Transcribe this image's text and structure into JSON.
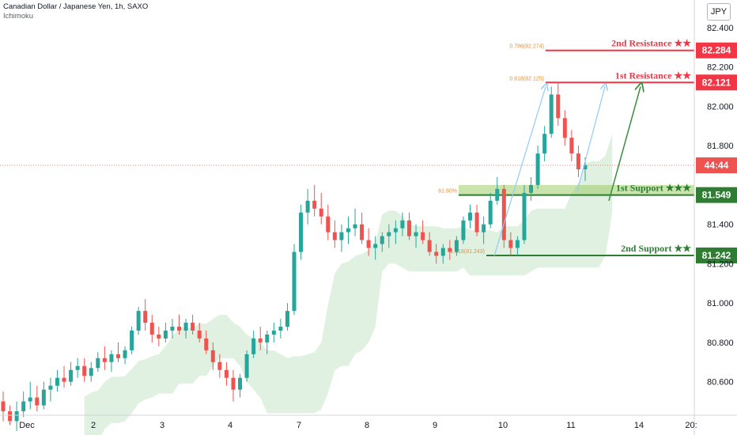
{
  "header": {
    "title": "Canadian Dollar / Japanese Yen, 1h, SAXO",
    "indicator": "Ichimoku"
  },
  "currency_button": "JPY",
  "colors": {
    "up": "#26a69a",
    "down": "#ef5350",
    "resistance": "#f23645",
    "support": "#2e7d32",
    "support_zone": "#8bc34a",
    "cloud_bull": "#c8e6c9",
    "cloud_bear": "#ffcdd2",
    "arrow_blue": "#90caf9",
    "arrow_green": "#388e3c",
    "fib": "#e69138"
  },
  "chart_data": {
    "type": "candlestick",
    "title": "Canadian Dollar / Japanese Yen, 1h, SAXO",
    "x_ticks": [
      "Dec",
      "2",
      "3",
      "4",
      "7",
      "8",
      "9",
      "10",
      "11",
      "14",
      "20:"
    ],
    "y_ticks": [
      "82.400",
      "82.200",
      "82.000",
      "81.800",
      "81.400",
      "81.200",
      "81.000",
      "80.800",
      "80.600"
    ],
    "ylim": [
      80.45,
      82.5
    ],
    "grid": false,
    "levels": [
      {
        "label": "2nd Resistance ★★",
        "value": 82.284,
        "value_label": "82.284",
        "kind": "resistance",
        "fib": "0.786(82.274)"
      },
      {
        "label": "1st Resistance ★★",
        "value": 82.121,
        "value_label": "82.121",
        "kind": "resistance",
        "fib": "0.618(82.125)"
      },
      {
        "label": "1st Support ★★★",
        "value": 81.549,
        "value_label": "81.549",
        "kind": "support",
        "fib": "61.80%"
      },
      {
        "label": "2nd Support ★★",
        "value": 81.242,
        "value_label": "81.242",
        "kind": "support",
        "fib": "1.618(81.243)"
      }
    ],
    "countdown_label": "44:44",
    "current_price": 81.7,
    "candles": [
      [
        80.5,
        80.55,
        80.4,
        80.45
      ],
      [
        80.45,
        80.48,
        80.38,
        80.4
      ],
      [
        80.4,
        80.5,
        80.35,
        80.45
      ],
      [
        80.45,
        80.55,
        80.42,
        80.5
      ],
      [
        80.5,
        80.6,
        80.46,
        80.52
      ],
      [
        80.52,
        80.58,
        80.45,
        80.48
      ],
      [
        80.48,
        80.6,
        80.46,
        80.56
      ],
      [
        80.56,
        80.62,
        80.5,
        80.58
      ],
      [
        80.58,
        80.66,
        80.55,
        80.62
      ],
      [
        80.62,
        80.68,
        80.57,
        80.6
      ],
      [
        80.6,
        80.7,
        80.58,
        80.66
      ],
      [
        80.66,
        80.72,
        80.62,
        80.68
      ],
      [
        80.68,
        80.72,
        80.6,
        80.63
      ],
      [
        80.63,
        80.7,
        80.6,
        80.67
      ],
      [
        80.67,
        80.75,
        80.65,
        80.72
      ],
      [
        80.72,
        80.78,
        80.66,
        80.7
      ],
      [
        80.7,
        80.76,
        80.65,
        80.74
      ],
      [
        80.74,
        80.8,
        80.7,
        80.72
      ],
      [
        80.72,
        80.78,
        80.69,
        80.76
      ],
      [
        80.76,
        80.88,
        80.74,
        80.86
      ],
      [
        80.86,
        80.98,
        80.84,
        80.96
      ],
      [
        80.96,
        81.02,
        80.86,
        80.9
      ],
      [
        80.9,
        80.94,
        80.8,
        80.84
      ],
      [
        80.84,
        80.88,
        80.78,
        80.82
      ],
      [
        80.82,
        80.9,
        80.8,
        80.86
      ],
      [
        80.86,
        80.92,
        80.82,
        80.88
      ],
      [
        80.88,
        80.94,
        80.84,
        80.86
      ],
      [
        80.86,
        80.92,
        80.82,
        80.9
      ],
      [
        80.9,
        80.94,
        80.84,
        80.86
      ],
      [
        80.86,
        80.9,
        80.8,
        80.82
      ],
      [
        80.82,
        80.86,
        80.74,
        80.76
      ],
      [
        80.76,
        80.8,
        80.66,
        80.7
      ],
      [
        80.7,
        80.74,
        80.62,
        80.66
      ],
      [
        80.66,
        80.7,
        80.58,
        80.62
      ],
      [
        80.62,
        80.66,
        80.5,
        80.56
      ],
      [
        80.56,
        80.64,
        80.52,
        80.62
      ],
      [
        80.62,
        80.76,
        80.6,
        80.74
      ],
      [
        80.74,
        80.86,
        80.72,
        80.82
      ],
      [
        80.82,
        80.88,
        80.76,
        80.8
      ],
      [
        80.8,
        80.86,
        80.74,
        80.84
      ],
      [
        80.84,
        80.9,
        80.8,
        80.86
      ],
      [
        80.86,
        80.92,
        80.82,
        80.88
      ],
      [
        80.88,
        81.0,
        80.86,
        80.96
      ],
      [
        80.96,
        81.3,
        80.94,
        81.26
      ],
      [
        81.26,
        81.5,
        81.22,
        81.46
      ],
      [
        81.46,
        81.58,
        81.4,
        81.52
      ],
      [
        81.52,
        81.6,
        81.44,
        81.48
      ],
      [
        81.48,
        81.56,
        81.4,
        81.44
      ],
      [
        81.44,
        81.5,
        81.32,
        81.36
      ],
      [
        81.36,
        81.42,
        81.28,
        81.32
      ],
      [
        81.32,
        81.4,
        81.26,
        81.36
      ],
      [
        81.36,
        81.44,
        81.3,
        81.38
      ],
      [
        81.38,
        81.48,
        81.34,
        81.4
      ],
      [
        81.4,
        81.46,
        81.3,
        81.32
      ],
      [
        81.32,
        81.38,
        81.24,
        81.28
      ],
      [
        81.28,
        81.34,
        81.22,
        81.3
      ],
      [
        81.3,
        81.36,
        81.26,
        81.34
      ],
      [
        81.34,
        81.4,
        81.28,
        81.36
      ],
      [
        81.36,
        81.42,
        81.3,
        81.38
      ],
      [
        81.38,
        81.46,
        81.34,
        81.42
      ],
      [
        81.42,
        81.46,
        81.32,
        81.34
      ],
      [
        81.34,
        81.4,
        81.28,
        81.36
      ],
      [
        81.36,
        81.42,
        81.3,
        81.32
      ],
      [
        81.32,
        81.36,
        81.24,
        81.26
      ],
      [
        81.26,
        81.3,
        81.2,
        81.24
      ],
      [
        81.24,
        81.3,
        81.2,
        81.28
      ],
      [
        81.28,
        81.32,
        81.22,
        81.26
      ],
      [
        81.26,
        81.34,
        81.24,
        81.32
      ],
      [
        81.32,
        81.44,
        81.3,
        81.42
      ],
      [
        81.42,
        81.5,
        81.38,
        81.46
      ],
      [
        81.46,
        81.5,
        81.34,
        81.36
      ],
      [
        81.36,
        81.44,
        81.3,
        81.4
      ],
      [
        81.4,
        81.56,
        81.38,
        81.52
      ],
      [
        81.52,
        81.64,
        81.5,
        81.58
      ],
      [
        81.58,
        81.6,
        81.28,
        81.32
      ],
      [
        81.32,
        81.36,
        81.24,
        81.28
      ],
      [
        81.28,
        81.34,
        81.24,
        81.32
      ],
      [
        81.32,
        81.6,
        81.3,
        81.56
      ],
      [
        81.56,
        81.64,
        81.52,
        81.6
      ],
      [
        81.6,
        81.8,
        81.58,
        81.76
      ],
      [
        81.76,
        81.9,
        81.72,
        81.86
      ],
      [
        81.86,
        82.1,
        81.84,
        82.06
      ],
      [
        82.06,
        82.12,
        81.9,
        81.94
      ],
      [
        81.94,
        81.98,
        81.8,
        81.84
      ],
      [
        81.84,
        81.88,
        81.72,
        81.76
      ],
      [
        81.76,
        81.8,
        81.64,
        81.68
      ],
      [
        81.68,
        81.74,
        81.62,
        81.7
      ]
    ]
  }
}
